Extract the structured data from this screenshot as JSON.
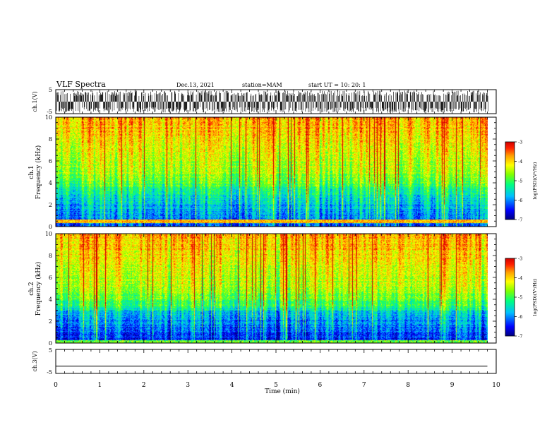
{
  "header": {
    "title": "VLF Spectra",
    "date": "Dec.13, 2021",
    "station": "station=MAM",
    "start": "start UT =  10: 20: 1"
  },
  "colors": {
    "background": "#ffffff",
    "axes": "#000000",
    "colormap": [
      "#00007f",
      "#0000ff",
      "#00bfff",
      "#00ff80",
      "#80ff00",
      "#ffff00",
      "#ffa000",
      "#ff2000",
      "#d00000"
    ]
  },
  "chart_data": [
    {
      "id": "ch1-waveform",
      "type": "line",
      "ylabel": "ch.1(V)",
      "ylim": [
        -5,
        5
      ],
      "yticks": [
        "5",
        "-5"
      ],
      "xlim": [
        0,
        10
      ],
      "description_values": {
        "amplitude_approx": 4.6,
        "burst_count": 190
      }
    },
    {
      "id": "ch1-spectrogram",
      "type": "heatmap",
      "ylabel": [
        "ch.1",
        "Frequency (kHz)"
      ],
      "ylim": [
        0,
        10
      ],
      "yticks": [
        "0",
        "2",
        "4",
        "6",
        "8",
        "10"
      ],
      "xlim": [
        0,
        10
      ],
      "colorbar": {
        "label": "log(PSD)(V²/Hz)",
        "range": [
          -7,
          -3
        ],
        "ticks": [
          "-3",
          "-4",
          "-5",
          "-6",
          "-7"
        ]
      }
    },
    {
      "id": "ch2-spectrogram",
      "type": "heatmap",
      "ylabel": [
        "ch.2",
        "Frequency (kHz)"
      ],
      "ylim": [
        0,
        10
      ],
      "yticks": [
        "0",
        "2",
        "4",
        "6",
        "8",
        "10"
      ],
      "xlim": [
        0,
        10
      ],
      "colorbar": {
        "label": "log(PSD)(V²/Hz)",
        "range": [
          -7,
          -3
        ],
        "ticks": [
          "-3",
          "-4",
          "-5",
          "-6",
          "-7"
        ]
      }
    },
    {
      "id": "ch3-waveform",
      "type": "line",
      "ylabel": "ch.3(V)",
      "ylim": [
        -5,
        5
      ],
      "yticks": [
        "5",
        "-5"
      ],
      "xlim": [
        0,
        10
      ],
      "x": [
        0,
        9.8
      ],
      "y": [
        -2,
        -2
      ]
    }
  ],
  "xaxis": {
    "label": "Time (min)",
    "ticks": [
      "0",
      "1",
      "2",
      "3",
      "4",
      "5",
      "6",
      "7",
      "8",
      "9",
      "10"
    ]
  }
}
